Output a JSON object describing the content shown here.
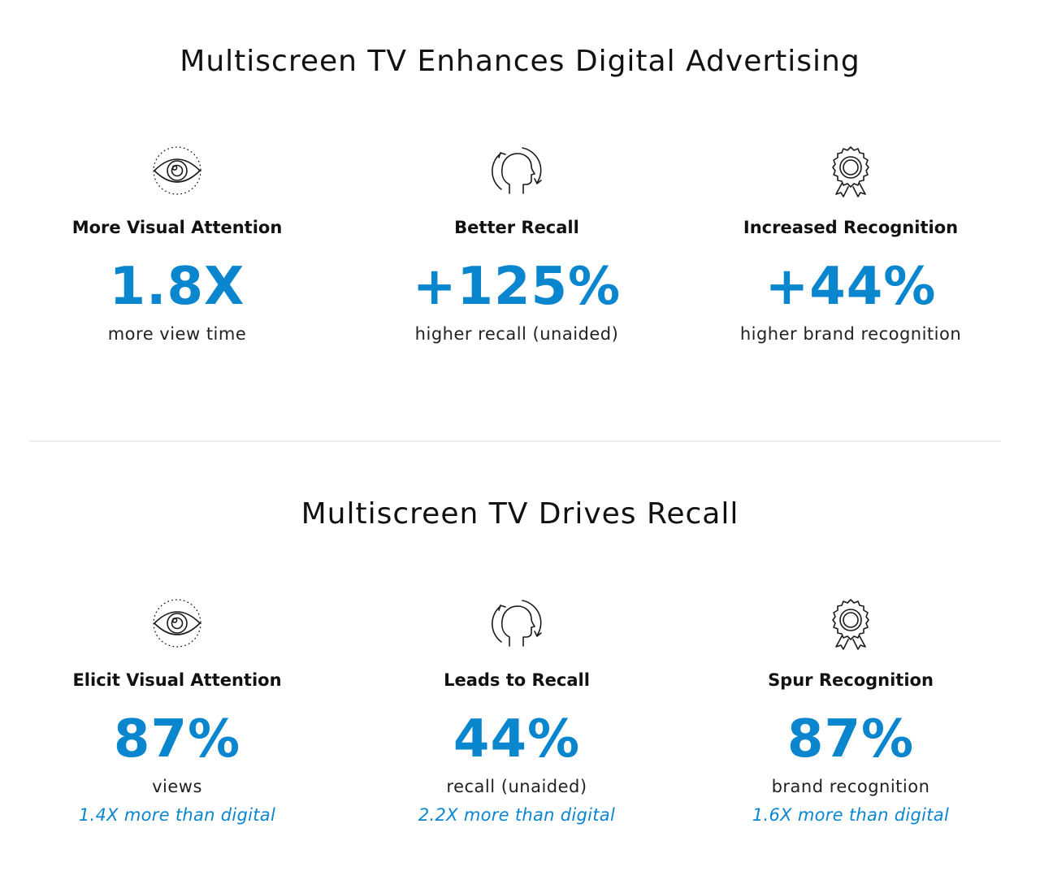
{
  "sections": [
    {
      "title": "Multiscreen TV Enhances Digital Advertising",
      "stats": [
        {
          "icon": "eye-icon",
          "label": "More Visual Attention",
          "value": "1.8X",
          "description": "more view time",
          "comparison": ""
        },
        {
          "icon": "head-recall-icon",
          "label": "Better Recall",
          "value": "+125%",
          "description": "higher recall (unaided)",
          "comparison": ""
        },
        {
          "icon": "award-ribbon-icon",
          "label": "Increased Recognition",
          "value": "+44%",
          "description": "higher brand recognition",
          "comparison": ""
        }
      ]
    },
    {
      "title": "Multiscreen TV Drives Recall",
      "stats": [
        {
          "icon": "eye-icon",
          "label": "Elicit Visual Attention",
          "value": "87%",
          "description": "views",
          "comparison": "1.4X more than digital"
        },
        {
          "icon": "head-recall-icon",
          "label": "Leads to Recall",
          "value": "44%",
          "description": "recall (unaided)",
          "comparison": "2.2X more than digital"
        },
        {
          "icon": "award-ribbon-icon",
          "label": "Spur Recognition",
          "value": "87%",
          "description": "brand recognition",
          "comparison": "1.6X more than digital"
        }
      ]
    }
  ],
  "colors": {
    "accent": "#0a86cf",
    "text": "#111111",
    "divider": "#ececec"
  }
}
